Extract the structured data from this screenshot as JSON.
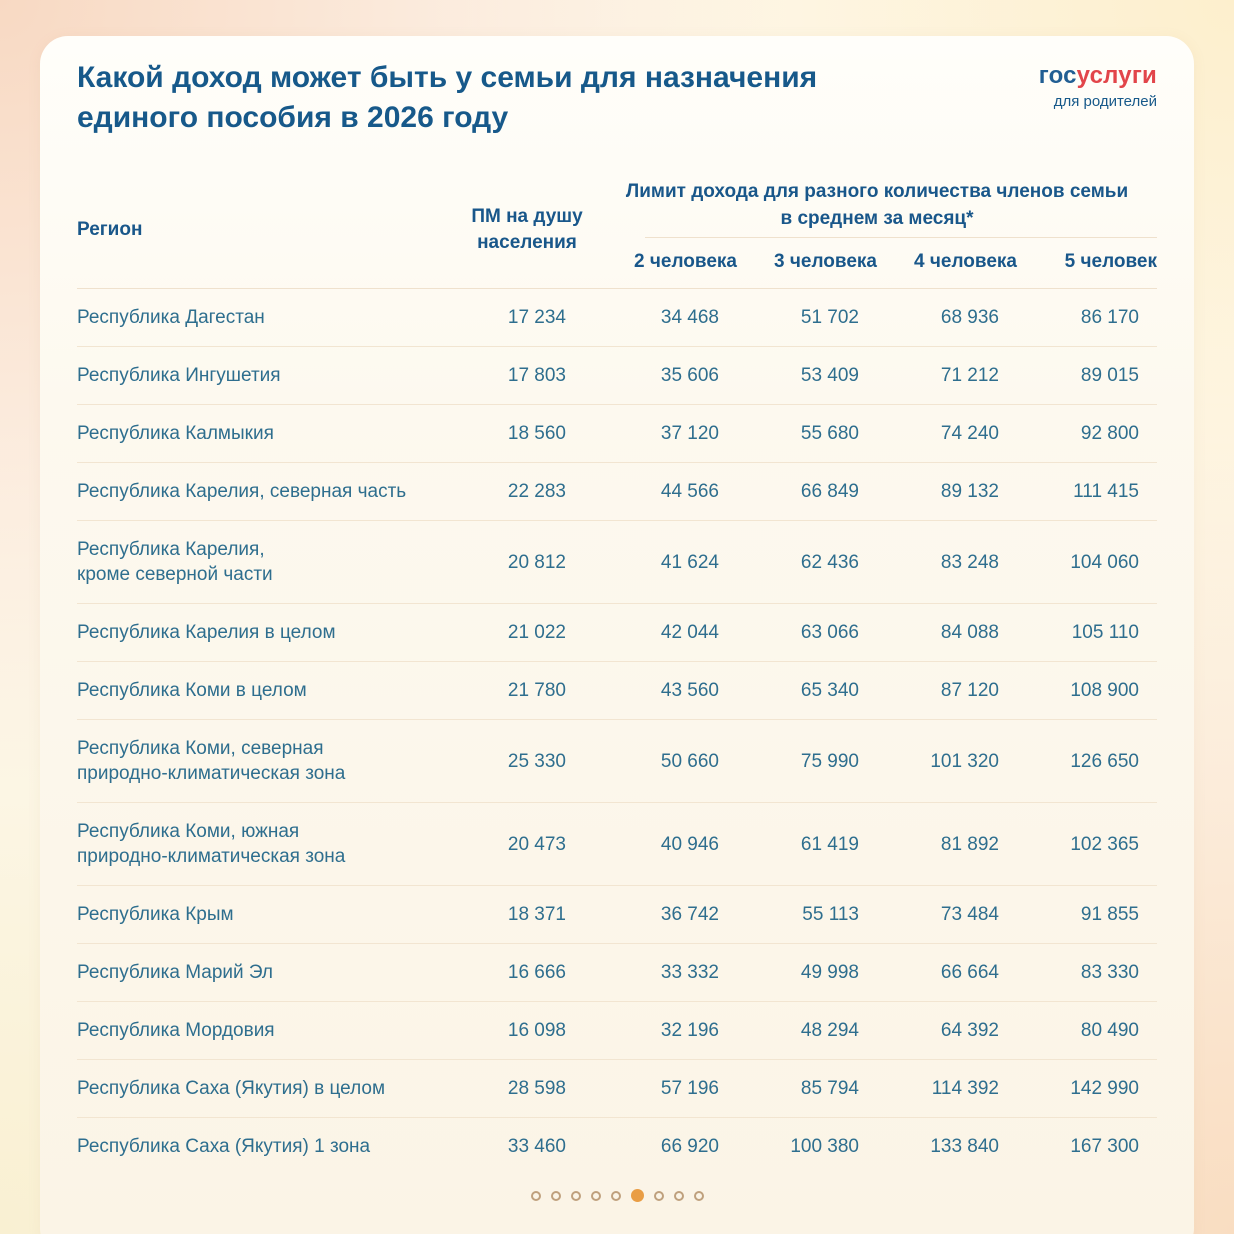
{
  "header": {
    "title": "Какой доход может быть у семьи для назначения\nединого пособия в 2026 году",
    "logo": {
      "blue": "гос",
      "red": "услуги",
      "tagline": "для родителей"
    }
  },
  "table": {
    "col_region": "Регион",
    "col_pm": "ПМ на душу\nнаселения",
    "limit_group": "Лимит дохода для разного количества членов семьи\nв среднем за месяц*",
    "limit_cols": [
      "2 человека",
      "3 человека",
      "4 человека",
      "5 человек"
    ],
    "rows": [
      {
        "region": "Республика Дагестан",
        "values": [
          "17 234",
          "34 468",
          "51 702",
          "68 936",
          "86 170"
        ]
      },
      {
        "region": "Республика Ингушетия",
        "values": [
          "17 803",
          "35 606",
          "53 409",
          "71 212",
          "89 015"
        ]
      },
      {
        "region": "Республика Калмыкия",
        "values": [
          "18 560",
          "37 120",
          "55 680",
          "74 240",
          "92 800"
        ]
      },
      {
        "region": "Республика Карелия, северная часть",
        "values": [
          "22 283",
          "44 566",
          "66 849",
          "89 132",
          "111 415"
        ]
      },
      {
        "region": "Республика Карелия,\nкроме северной части",
        "values": [
          "20 812",
          "41 624",
          "62 436",
          "83 248",
          "104 060"
        ]
      },
      {
        "region": "Республика Карелия в целом",
        "values": [
          "21 022",
          "42 044",
          "63 066",
          "84 088",
          "105 110"
        ]
      },
      {
        "region": "Республика Коми в целом",
        "values": [
          "21 780",
          "43 560",
          "65 340",
          "87 120",
          "108 900"
        ]
      },
      {
        "region": "Республика Коми, северная\nприродно-климатическая зона",
        "values": [
          "25 330",
          "50 660",
          "75 990",
          "101 320",
          "126 650"
        ]
      },
      {
        "region": "Республика Коми, южная\nприродно-климатическая зона",
        "values": [
          "20 473",
          "40 946",
          "61 419",
          "81 892",
          "102 365"
        ]
      },
      {
        "region": "Республика Крым",
        "values": [
          "18 371",
          "36 742",
          "55 113",
          "73 484",
          "91 855"
        ]
      },
      {
        "region": "Республика Марий Эл",
        "values": [
          "16 666",
          "33 332",
          "49 998",
          "66 664",
          "83 330"
        ]
      },
      {
        "region": "Республика Мордовия",
        "values": [
          "16 098",
          "32 196",
          "48 294",
          "64 392",
          "80 490"
        ]
      },
      {
        "region": "Республика Саха (Якутия) в целом",
        "values": [
          "28 598",
          "57 196",
          "85 794",
          "114 392",
          "142 990"
        ]
      },
      {
        "region": "Республика Саха (Якутия) 1 зона",
        "values": [
          "33 460",
          "66 920",
          "100 380",
          "133 840",
          "167 300"
        ]
      }
    ]
  },
  "pagination": {
    "total": 9,
    "active_index": 5
  },
  "colors": {
    "title_blue": "#17598a",
    "header_blue": "#19578a",
    "cell_blue": "#2e6e8e",
    "logo_blue": "#215e93",
    "logo_red": "#e2454a",
    "divider": "#efe1cd",
    "dot_ring": "#bfa07d",
    "dot_active": "#e99d44"
  }
}
